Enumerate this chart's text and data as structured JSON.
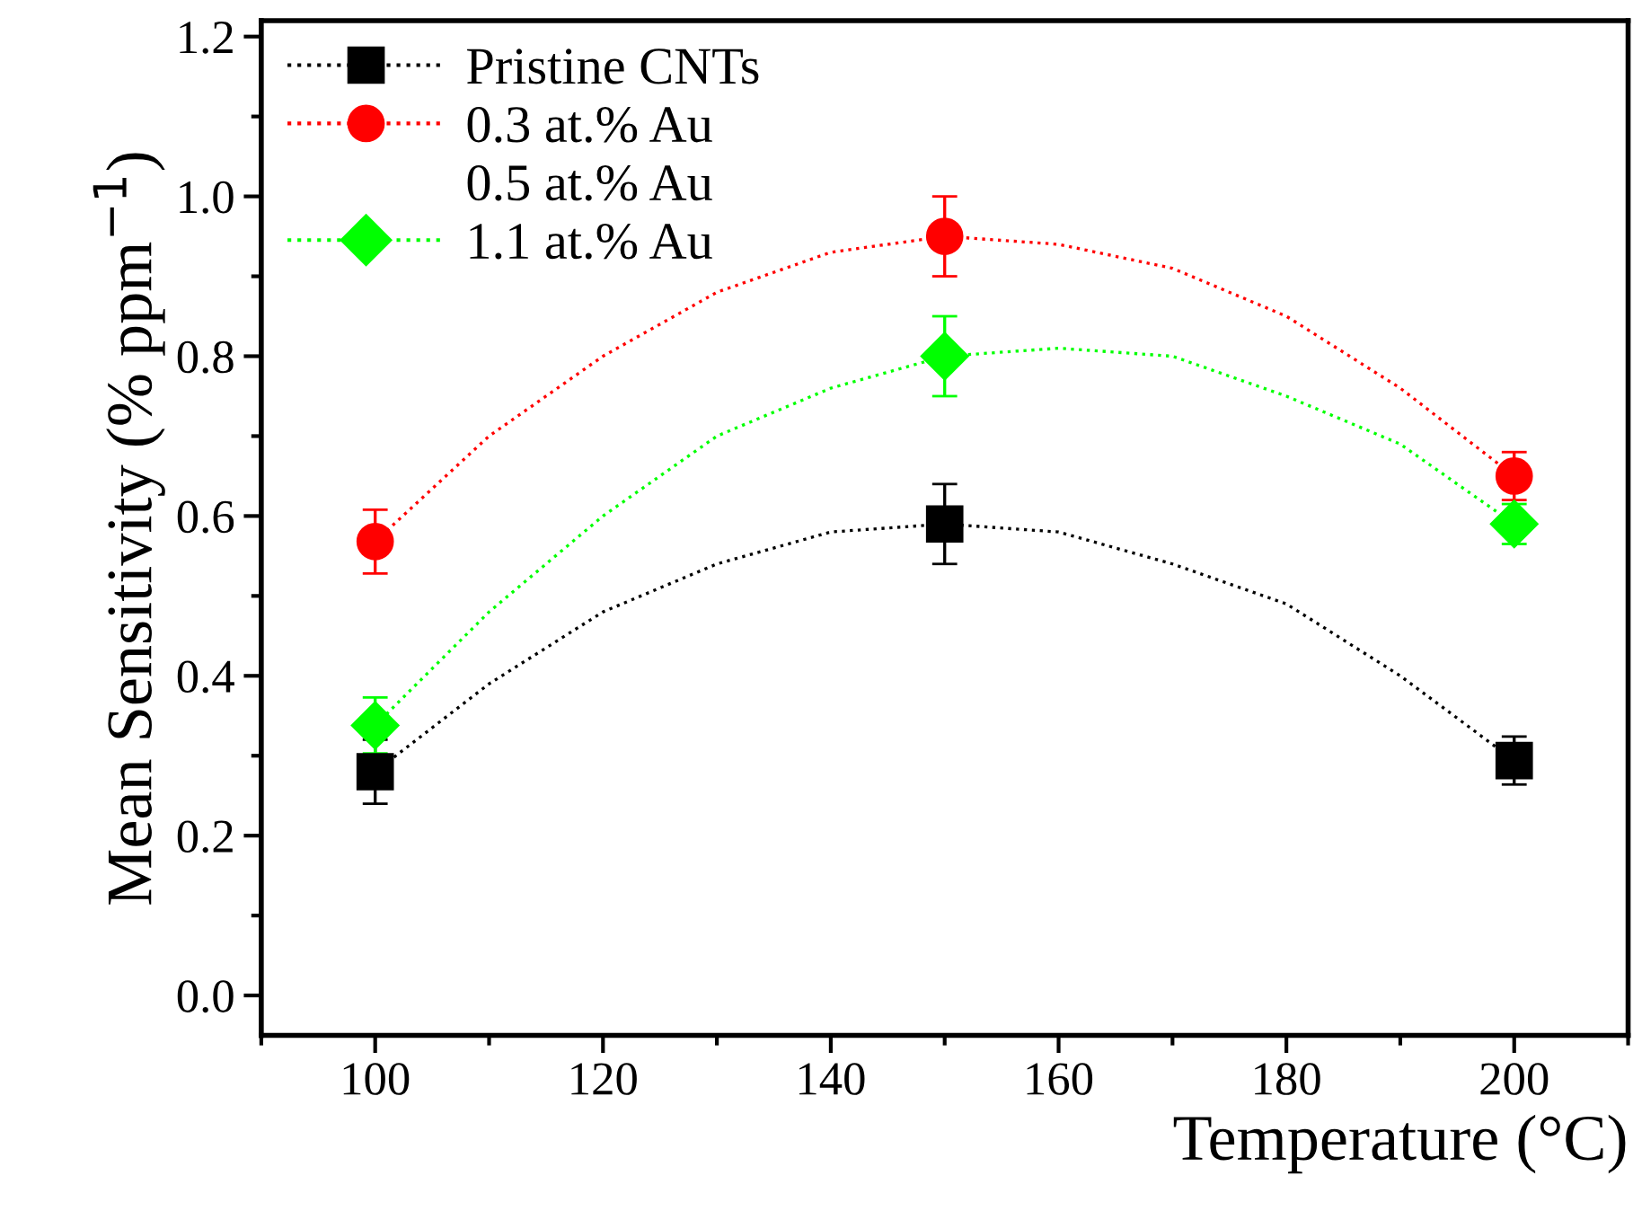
{
  "chart_data": {
    "type": "line",
    "xlabel": "Temperature (°C)",
    "ylabel": "Mean Sensitivity (% ppm$^{−1}$)",
    "x": [
      100,
      150,
      200
    ],
    "series": [
      {
        "color": "#000000",
        "marker": "none",
        "x": [
          100,
          110,
          120,
          130,
          140,
          150,
          160,
          170,
          180,
          190,
          200
        ],
        "values": [
          0.28,
          0.39,
          0.48,
          0.54,
          0.58,
          0.59,
          0.58,
          0.54,
          0.49,
          0.4,
          0.294
        ]
      },
      {
        "color": "#ff0000",
        "marker": "none",
        "x": [
          100,
          110,
          120,
          130,
          140,
          150,
          160,
          170,
          180,
          190,
          200
        ],
        "values": [
          0.568,
          0.7,
          0.8,
          0.88,
          0.93,
          0.95,
          0.94,
          0.91,
          0.85,
          0.76,
          0.65
        ]
      },
      {
        "color": "#00ff00",
        "marker": "none",
        "x": [
          100,
          110,
          120,
          130,
          140,
          150,
          160,
          170,
          180,
          190,
          200
        ],
        "values": [
          0.338,
          0.48,
          0.6,
          0.7,
          0.76,
          0.8,
          0.81,
          0.8,
          0.75,
          0.69,
          0.59
        ]
      },
      {
        "type": "scatter",
        "name": "Pristine CNTs",
        "color": "#000000",
        "marker": "square",
        "values": [
          0.28,
          0.59,
          0.294
        ],
        "errors": [
          0.04,
          0.05,
          0.03
        ]
      },
      {
        "type": "scatter",
        "name": "0.3 at.% Au",
        "color": "#ff0000",
        "marker": "circle",
        "values": [
          0.568,
          0.95,
          0.65
        ],
        "errors": [
          0.04,
          0.05,
          0.03
        ]
      },
      {
        "type": "scatter",
        "name": "0.5 at.% Au",
        "marker": "none",
        "values": [
          null,
          null,
          null
        ]
      },
      {
        "type": "scatter",
        "name": "1.1 at.% Au",
        "color": "#00ff00",
        "marker": "diamond",
        "values": [
          0.338,
          0.8,
          0.59
        ],
        "errors": [
          0.035,
          0.05,
          0.025
        ]
      }
    ],
    "line_style": "dotted",
    "xlim": [
      90,
      210
    ],
    "xticks": [
      100,
      120,
      140,
      160,
      180,
      200
    ],
    "ylim": [
      -0.05,
      1.22
    ],
    "yticks": [
      {
        "value": 0,
        "label": "0.0"
      },
      0.2,
      0.4,
      0.6,
      0.8,
      {
        "value": 1,
        "label": "1.0"
      },
      1.2
    ],
    "legend": "top left"
  }
}
